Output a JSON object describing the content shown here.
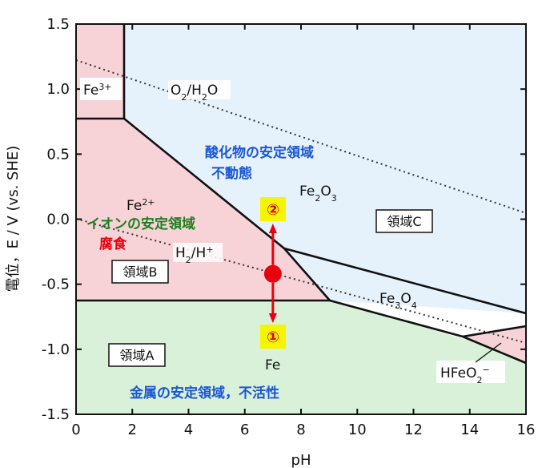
{
  "colors": {
    "metal_fill": "#d8f1d8",
    "ion_fill": "#f7d3d8",
    "oxide_fill": "#e6f2fb",
    "highlight": "#f5f500",
    "marker": "#e8000f",
    "blue_text": "#1a56d6",
    "green_text": "#1f7f1f",
    "red_text": "#e8000f"
  },
  "axes": {
    "xlabel": "pH",
    "ylabel": "電位，E / V (vs. SHE)",
    "x_ticks": [
      "0",
      "2",
      "4",
      "6",
      "8",
      "10",
      "12",
      "14",
      "16"
    ],
    "y_ticks": [
      "1.5",
      "1.0",
      "0.5",
      "0.0",
      "-0.5",
      "-1.0",
      "-1.5"
    ],
    "xlim": [
      0,
      16
    ],
    "ylim": [
      -1.5,
      1.5
    ]
  },
  "regions": {
    "fe3": "Fe3+",
    "fe2": "Fe2+",
    "fe2o3": "Fe2O3",
    "fe3o4": "Fe3O4",
    "fe": "Fe",
    "hfeo2": "HFeO2−"
  },
  "lines": {
    "o2_h2o": "O2/H2O",
    "h2_h": "H2/H+"
  },
  "annotations": {
    "oxide_stable": "酸化物の安定領域",
    "passive": "不動態",
    "ion_stable": "イオンの安定領域",
    "corrosion": "腐食",
    "metal_stable": "金属の安定領域，不活性",
    "region_a": "領域A",
    "region_b": "領域B",
    "region_c": "領域C",
    "marker_up": "②",
    "marker_down": "①"
  },
  "point": {
    "pH": 7.0,
    "E": -0.42
  }
}
